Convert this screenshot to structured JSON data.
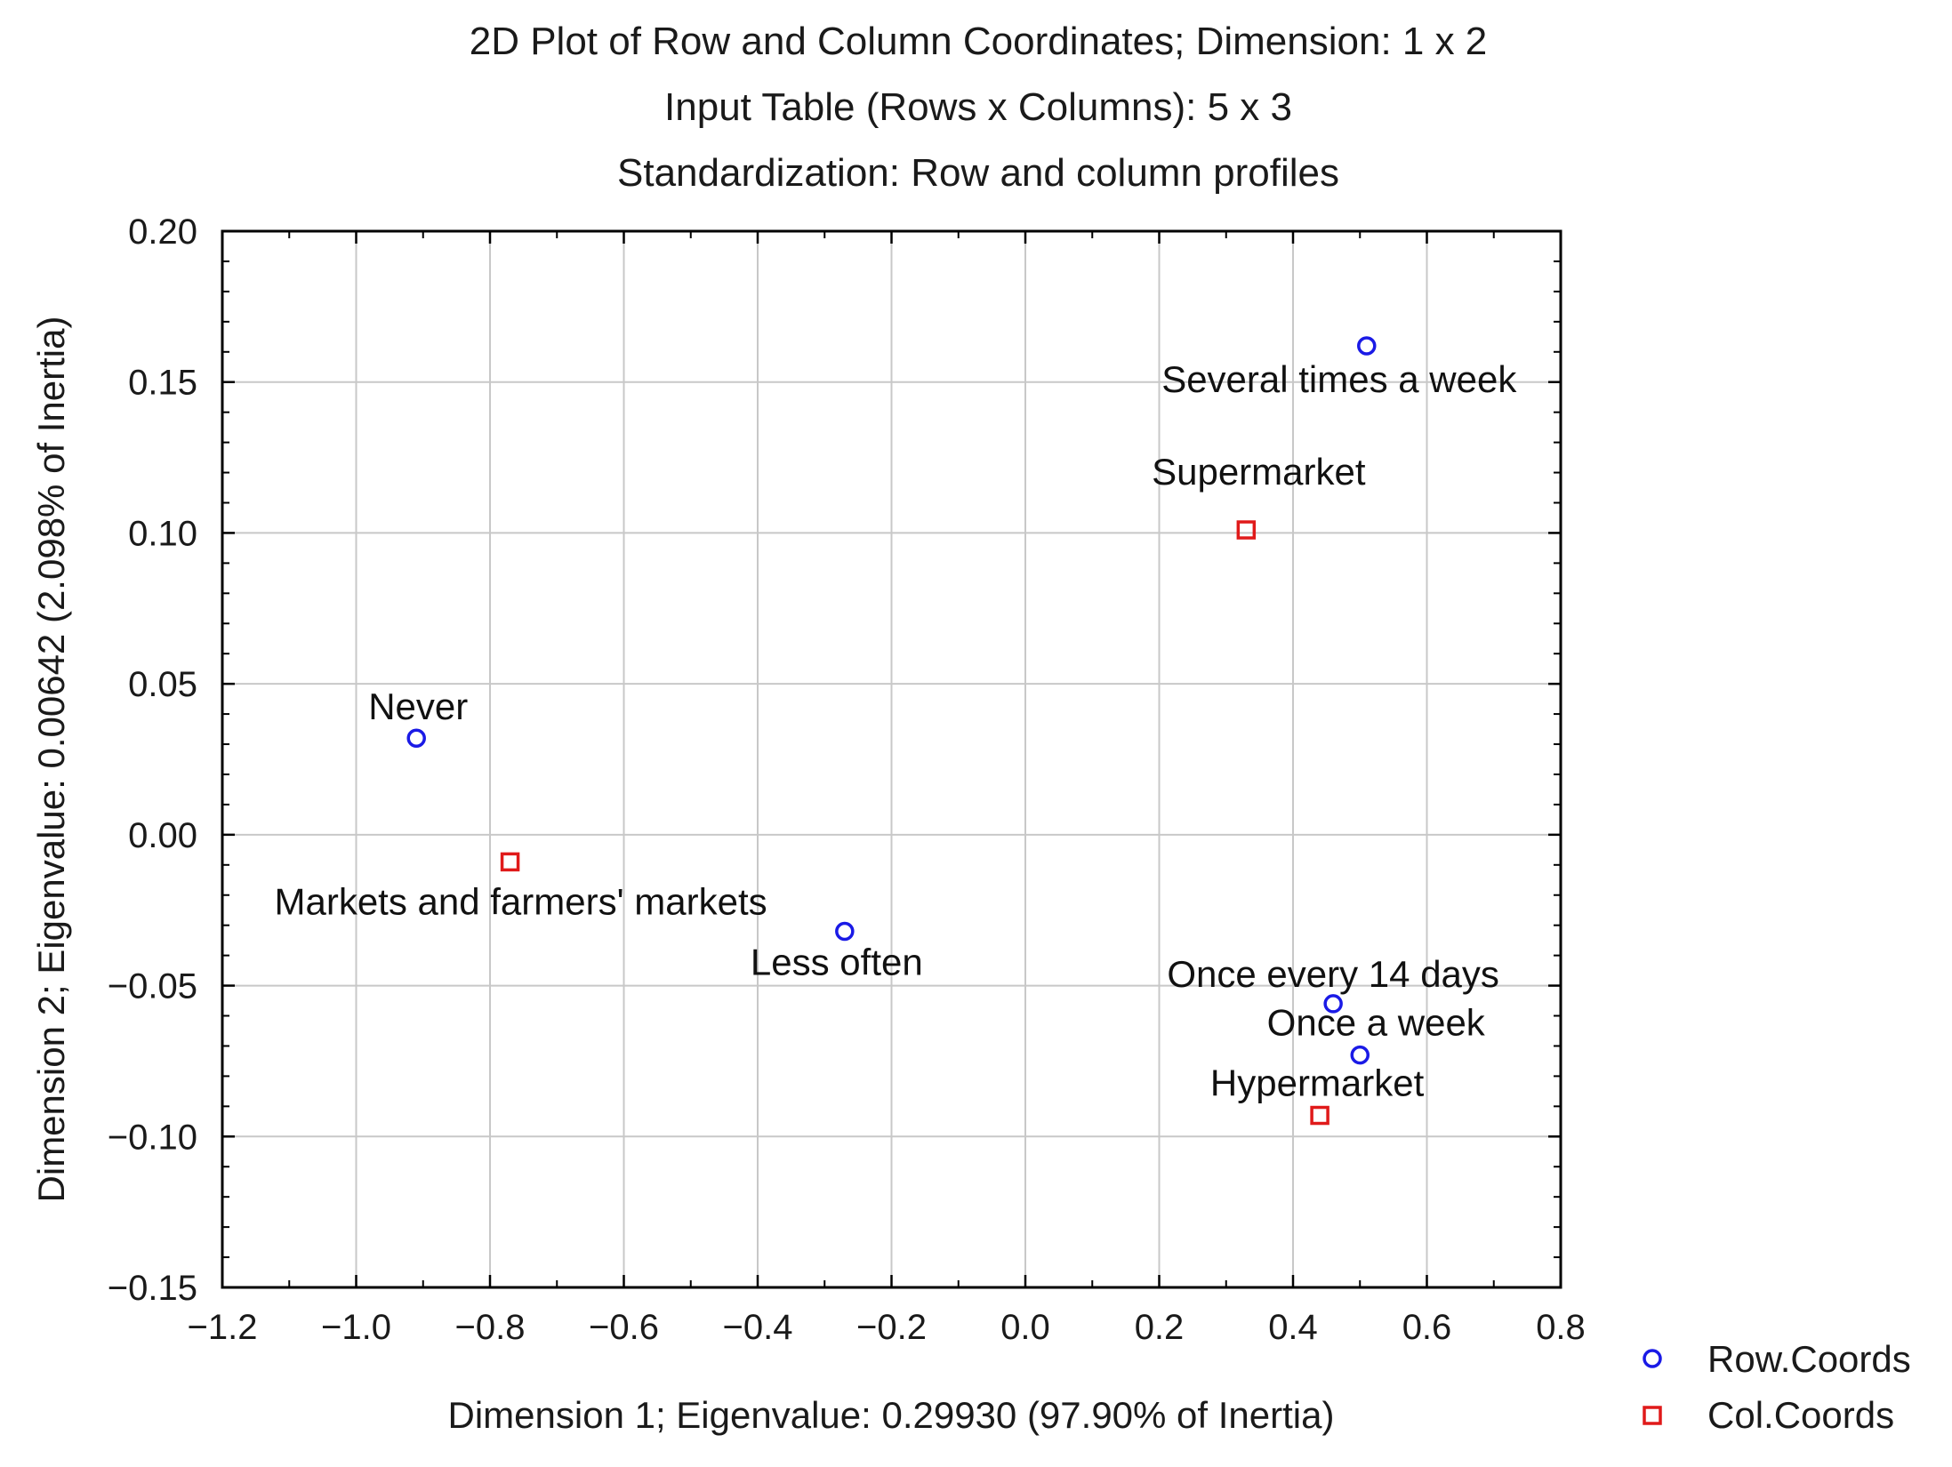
{
  "chart_data": {
    "type": "scatter",
    "title": "2D Plot of Row and Column Coordinates; Dimension:  1 x  2",
    "subtitle": "Input Table (Rows x Columns): 5 x 3",
    "subtitle2": "Standardization: Row and column profiles",
    "xlabel": "Dimension 1; Eigenvalue: 0.29930 (97.90% of Inertia)",
    "ylabel": "Dimension 2; Eigenvalue: 0.00642 (2.098% of Inertia)",
    "xlim": [
      -1.2,
      0.8
    ],
    "ylim": [
      -0.15,
      0.2
    ],
    "xticks": [
      -1.2,
      -1.0,
      -0.8,
      -0.6,
      -0.4,
      -0.2,
      0.0,
      0.2,
      0.4,
      0.6,
      0.8
    ],
    "xtick_labels": [
      "−1.2",
      "−1.0",
      "−0.8",
      "−0.6",
      "−0.4",
      "−0.2",
      "0.0",
      "0.2",
      "0.4",
      "0.6",
      "0.8"
    ],
    "yticks": [
      -0.15,
      -0.1,
      -0.05,
      0.0,
      0.05,
      0.1,
      0.15,
      0.2
    ],
    "ytick_labels": [
      "−0.15",
      "−0.10",
      "−0.05",
      "0.00",
      "0.05",
      "0.10",
      "0.15",
      "0.20"
    ],
    "grid": true,
    "legend_position": "bottom-right, outside plot",
    "series": [
      {
        "name": "Row.Coords",
        "marker": "circle",
        "color": "#1a1ae6",
        "points": [
          {
            "label": "Several times a week",
            "x": 0.51,
            "y": 0.162
          },
          {
            "label": "Never",
            "x": -0.91,
            "y": 0.032
          },
          {
            "label": "Less often",
            "x": -0.27,
            "y": -0.032
          },
          {
            "label": "Once every 14 days",
            "x": 0.46,
            "y": -0.056
          },
          {
            "label": "Once a week",
            "x": 0.5,
            "y": -0.073
          }
        ]
      },
      {
        "name": "Col.Coords",
        "marker": "square",
        "color": "#e01a1a",
        "points": [
          {
            "label": "Supermarket",
            "x": 0.33,
            "y": 0.101
          },
          {
            "label": "Markets and farmers' markets",
            "x": -0.77,
            "y": -0.009
          },
          {
            "label": "Hypermarket",
            "x": 0.44,
            "y": -0.093
          }
        ]
      }
    ]
  }
}
